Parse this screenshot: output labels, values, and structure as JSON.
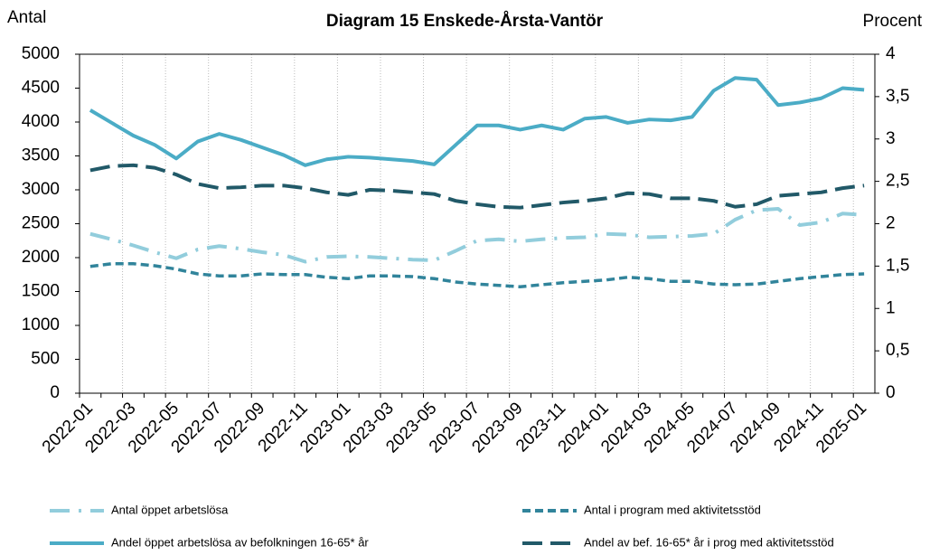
{
  "chart_data": {
    "type": "line",
    "title": "Diagram 15 Enskede-Årsta-Vantör",
    "ylabel": "Antal",
    "y2label": "Procent",
    "categories": [
      "2022-01",
      null,
      "2022-03",
      null,
      "2022-05",
      null,
      "2022-07",
      null,
      "2022-09",
      null,
      "2022-11",
      null,
      "2023-01",
      null,
      "2023-03",
      null,
      "2023-05",
      null,
      "2023-07",
      null,
      "2023-09",
      null,
      "2023-11",
      null,
      "2024-01",
      null,
      "2024-03",
      null,
      "2024-05",
      null,
      "2024-07",
      null,
      "2024-09",
      null,
      "2024-11",
      null,
      "2025-01"
    ],
    "ylim": [
      0,
      5000
    ],
    "yticks": [
      0,
      500,
      1000,
      1500,
      2000,
      2500,
      3000,
      3500,
      4000,
      4500,
      5000
    ],
    "y2lim": [
      0,
      4
    ],
    "y2ticks": [
      0,
      {
        "value": 0.5,
        "label": "0,5"
      },
      1,
      {
        "value": 1.5,
        "label": "1,5"
      },
      2,
      {
        "value": 2.5,
        "label": "2,5"
      },
      3,
      {
        "value": 3.5,
        "label": "3,5"
      },
      4
    ],
    "grid": "x",
    "series": [
      {
        "name": "Antal öppet arbetslösa",
        "color": "#92cddc",
        "dash": "dash-dot",
        "values": [
          2350,
          2270,
          2180,
          2080,
          1990,
          2120,
          2170,
          2130,
          2080,
          2040,
          1940,
          2010,
          2020,
          2010,
          1990,
          1970,
          1960,
          2100,
          2250,
          2270,
          2240,
          2270,
          2290,
          2300,
          2350,
          2340,
          2300,
          2310,
          2320,
          2350,
          2560,
          2700,
          2720,
          2480,
          2520,
          2650,
          2630
        ]
      },
      {
        "name": "Antal i program med aktivitetsstöd",
        "color": "#31849b",
        "dash": "dash",
        "values": [
          1870,
          1910,
          1910,
          1880,
          1830,
          1760,
          1730,
          1730,
          1760,
          1750,
          1750,
          1710,
          1690,
          1730,
          1730,
          1720,
          1690,
          1640,
          1610,
          1590,
          1570,
          1600,
          1630,
          1650,
          1670,
          1710,
          1690,
          1650,
          1650,
          1610,
          1600,
          1610,
          1650,
          1690,
          1720,
          1750,
          1760
        ]
      },
      {
        "name": "Andel öppet arbetslösa av befolkningen 16-65* år",
        "color": "#4bacc6",
        "dash": "solid",
        "axis": "y2",
        "values": [
          3.34,
          3.19,
          3.04,
          2.93,
          2.77,
          2.97,
          3.06,
          2.99,
          2.9,
          2.81,
          2.69,
          2.76,
          2.79,
          2.78,
          2.76,
          2.74,
          2.7,
          2.93,
          3.16,
          3.16,
          3.11,
          3.16,
          3.11,
          3.24,
          3.26,
          3.19,
          3.23,
          3.22,
          3.26,
          3.57,
          3.72,
          3.7,
          3.4,
          3.43,
          3.48,
          3.6,
          3.58
        ]
      },
      {
        "name": "Andel av bef. 16-65* år i prog med aktivitetsstöd",
        "color": "#215968",
        "dash": "long-dash",
        "axis": "y2",
        "values": [
          2.63,
          2.68,
          2.69,
          2.66,
          2.58,
          2.47,
          2.42,
          2.43,
          2.45,
          2.45,
          2.42,
          2.37,
          2.34,
          2.4,
          2.39,
          2.37,
          2.35,
          2.27,
          2.23,
          2.2,
          2.19,
          2.22,
          2.25,
          2.27,
          2.3,
          2.36,
          2.35,
          2.3,
          2.3,
          2.27,
          2.2,
          2.23,
          2.33,
          2.35,
          2.37,
          2.42,
          2.45
        ]
      }
    ]
  }
}
